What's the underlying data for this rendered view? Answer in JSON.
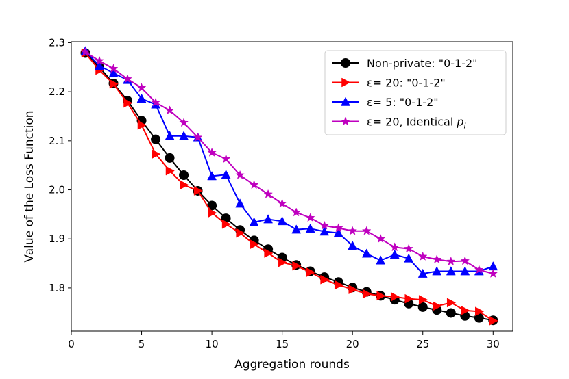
{
  "chart_data": {
    "type": "line",
    "title": "",
    "xlabel": "Aggregation rounds",
    "ylabel": "Value of the Loss Function",
    "xlim": [
      0,
      31.4
    ],
    "ylim": [
      1.712,
      2.302
    ],
    "xticks": [
      0,
      5,
      10,
      15,
      20,
      25,
      30
    ],
    "yticks": [
      1.8,
      1.9,
      2.0,
      2.1,
      2.2,
      2.3
    ],
    "xtick_labels": [
      "0",
      "5",
      "10",
      "15",
      "20",
      "25",
      "30"
    ],
    "ytick_labels": [
      "1.8",
      "1.9",
      "2.0",
      "2.1",
      "2.2",
      "2.3"
    ],
    "legend_position": "top-right",
    "x": [
      1,
      2,
      3,
      4,
      5,
      6,
      7,
      8,
      9,
      10,
      11,
      12,
      13,
      14,
      15,
      16,
      17,
      18,
      19,
      20,
      21,
      22,
      23,
      24,
      25,
      26,
      27,
      28,
      29,
      30
    ],
    "series": [
      {
        "name": "Non-private: \"0-1-2\"",
        "legend_main": "Non-private: \"0-1-2\"",
        "legend_sub": "",
        "legend_tail": "",
        "color": "#000000",
        "marker": "circle",
        "values": [
          2.279,
          2.25,
          2.217,
          2.182,
          2.141,
          2.103,
          2.065,
          2.03,
          1.998,
          1.968,
          1.942,
          1.918,
          1.897,
          1.879,
          1.862,
          1.847,
          1.834,
          1.822,
          1.812,
          1.801,
          1.792,
          1.784,
          1.776,
          1.768,
          1.761,
          1.755,
          1.749,
          1.743,
          1.739,
          1.734
        ]
      },
      {
        "name": "ε= 20: \"0-1-2\"",
        "legend_main": "ε= 20: \"0-1-2\"",
        "legend_sub": "",
        "legend_tail": "",
        "color": "#ff0000",
        "marker": "triangle-right",
        "values": [
          2.279,
          2.244,
          2.216,
          2.177,
          2.132,
          2.073,
          2.039,
          2.01,
          1.998,
          1.953,
          1.93,
          1.912,
          1.889,
          1.871,
          1.852,
          1.845,
          1.832,
          1.817,
          1.806,
          1.797,
          1.788,
          1.784,
          1.782,
          1.778,
          1.776,
          1.763,
          1.77,
          1.754,
          1.752,
          1.733
        ]
      },
      {
        "name": "ε= 5: \"0-1-2\"",
        "legend_main": "ε= 5: \"0-1-2\"",
        "legend_sub": "",
        "legend_tail": "",
        "color": "#0000ff",
        "marker": "triangle-up",
        "values": [
          2.283,
          2.253,
          2.238,
          2.224,
          2.186,
          2.174,
          2.11,
          2.11,
          2.107,
          2.028,
          2.031,
          1.972,
          1.934,
          1.94,
          1.936,
          1.919,
          1.921,
          1.915,
          1.912,
          1.886,
          1.87,
          1.856,
          1.868,
          1.86,
          1.829,
          1.834,
          1.834,
          1.834,
          1.834,
          1.844
        ]
      },
      {
        "name": "ε= 20, Identical p_i",
        "legend_main": "ε= 20, Identical ",
        "legend_sub": "p",
        "legend_tail": "i",
        "color": "#bf00bf",
        "marker": "star",
        "values": [
          2.281,
          2.263,
          2.247,
          2.226,
          2.208,
          2.178,
          2.162,
          2.137,
          2.107,
          2.076,
          2.063,
          2.03,
          2.01,
          1.991,
          1.972,
          1.954,
          1.943,
          1.927,
          1.922,
          1.916,
          1.916,
          1.9,
          1.883,
          1.88,
          1.864,
          1.858,
          1.854,
          1.855,
          1.837,
          1.829
        ]
      }
    ]
  }
}
